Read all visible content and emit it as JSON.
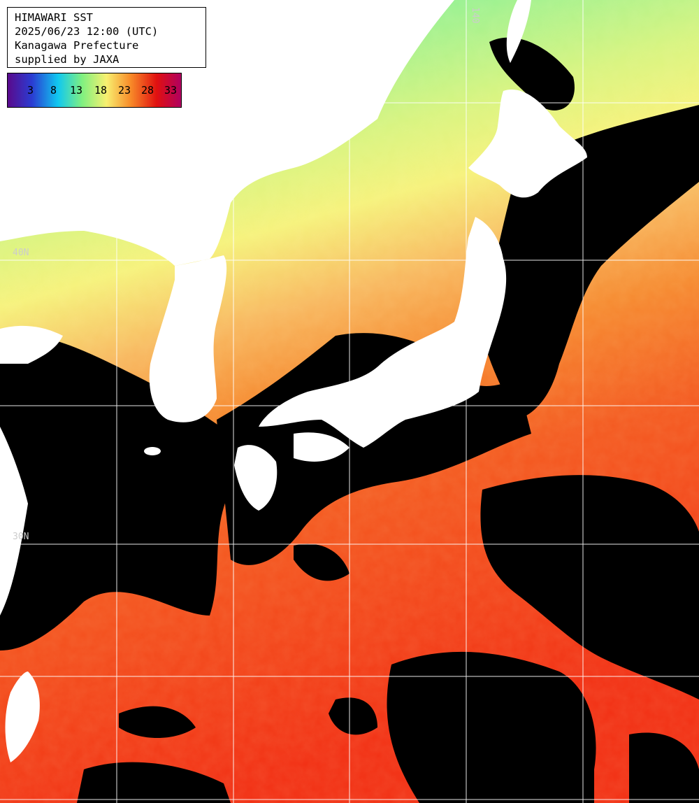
{
  "title": {
    "line1": "HIMAWARI SST",
    "line2": "2025/06/23 12:00 (UTC)",
    "line3": "Kanagawa Prefecture",
    "line4": "supplied by JAXA"
  },
  "legend": {
    "ticks": [
      "3",
      "8",
      "13",
      "18",
      "23",
      "28",
      "33"
    ],
    "colors": [
      "#5a0a8c",
      "#2a3cd2",
      "#10c8f0",
      "#80f080",
      "#f8f070",
      "#f88a28",
      "#e01010",
      "#b00060"
    ]
  },
  "grid_labels": {
    "left_upper": "40N",
    "left_lower": "30N",
    "top_right": "140"
  },
  "colors": {
    "land": "#ffffff",
    "cloud": "#000000",
    "grid": "#ffffff",
    "sst_cold": "#30d8f0",
    "sst_cool": "#7cf09a",
    "sst_mild": "#f6f27c",
    "sst_warm": "#f6a046",
    "sst_hot": "#f24a1c"
  }
}
